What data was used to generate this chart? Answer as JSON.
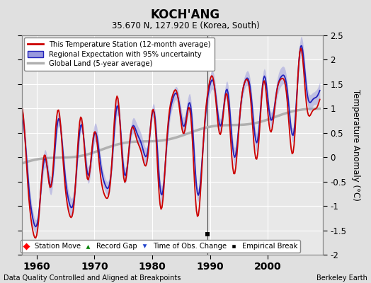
{
  "title": "KOCH'ANG",
  "subtitle": "35.670 N, 127.920 E (Korea, South)",
  "ylabel": "Temperature Anomaly (°C)",
  "xlabel_note": "Data Quality Controlled and Aligned at Breakpoints",
  "credit": "Berkeley Earth",
  "xlim": [
    1957.5,
    2009.5
  ],
  "ylim": [
    -2.0,
    2.5
  ],
  "yticks": [
    -2,
    -1.5,
    -1,
    -0.5,
    0,
    0.5,
    1,
    1.5,
    2,
    2.5
  ],
  "xticks": [
    1960,
    1970,
    1980,
    1990,
    2000
  ],
  "bg_color": "#e0e0e0",
  "plot_bg_color": "#e8e8e8",
  "grid_color": "#ffffff",
  "empirical_break_year": 1989.5,
  "empirical_break_y": -1.58,
  "regional_color": "#2222bb",
  "regional_fill_color": "#9999dd",
  "station_color": "#cc0000",
  "global_color": "#b0b0b0",
  "global_lw": 2.5,
  "vertical_line_x": 1989.5
}
